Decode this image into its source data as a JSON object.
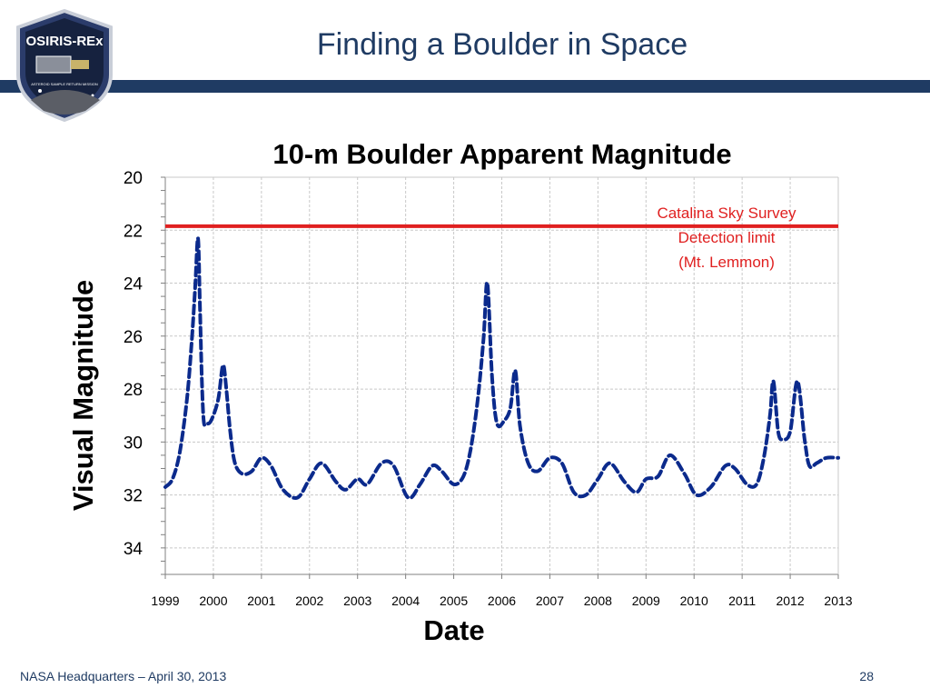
{
  "slide": {
    "title": "Finding a Boulder in Space",
    "footer_left": "NASA Headquarters – April 30, 2013",
    "page_number": "28",
    "logo": {
      "text": "OSIRIS-REx",
      "subtext": "ASTEROID SAMPLE RETURN MISSION"
    }
  },
  "colors": {
    "theme": "#1f3b63",
    "series": "#0b2a8c",
    "limit": "#e02020",
    "annotation": "#e02020"
  },
  "chart_data": {
    "type": "line",
    "title": "10-m Boulder Apparent Magnitude",
    "xlabel": "Date",
    "ylabel": "Visual Magnitude",
    "xlim": [
      1999,
      2013
    ],
    "ylim": [
      20,
      35
    ],
    "y_inverted": true,
    "x_ticks": [
      1999,
      2000,
      2001,
      2002,
      2003,
      2004,
      2005,
      2006,
      2007,
      2008,
      2009,
      2010,
      2011,
      2012,
      2013
    ],
    "y_ticks": [
      20,
      22,
      24,
      26,
      28,
      30,
      32,
      34
    ],
    "grid": true,
    "reference_line": {
      "y": 21.85,
      "annotation": [
        "Catalina Sky Survey",
        "Detection limit",
        "(Mt. Lemmon)"
      ]
    },
    "series": [
      {
        "line_style": "dashed",
        "x": [
          1999.0,
          1999.15,
          1999.3,
          1999.45,
          1999.55,
          1999.62,
          1999.68,
          1999.72,
          1999.76,
          1999.8,
          1999.85,
          1999.95,
          2000.1,
          2000.2,
          2000.27,
          2000.35,
          2000.45,
          2000.6,
          2000.8,
          2001.0,
          2001.2,
          2001.45,
          2001.75,
          2002.0,
          2002.25,
          2002.55,
          2002.75,
          2003.0,
          2003.2,
          2003.5,
          2003.75,
          2004.05,
          2004.3,
          2004.55,
          2004.75,
          2005.0,
          2005.2,
          2005.35,
          2005.5,
          2005.62,
          2005.7,
          2005.8,
          2005.9,
          2006.05,
          2006.18,
          2006.28,
          2006.38,
          2006.55,
          2006.75,
          2007.0,
          2007.25,
          2007.5,
          2007.75,
          2008.0,
          2008.25,
          2008.55,
          2008.8,
          2009.0,
          2009.25,
          2009.5,
          2009.8,
          2010.05,
          2010.35,
          2010.65,
          2010.85,
          2011.1,
          2011.3,
          2011.45,
          2011.58,
          2011.65,
          2011.75,
          2011.85,
          2012.0,
          2012.15,
          2012.3,
          2012.4,
          2012.55,
          2012.75,
          2013.0
        ],
        "y": [
          31.7,
          31.4,
          30.4,
          28.4,
          26.2,
          24.2,
          22.3,
          24.8,
          27.6,
          29.2,
          29.3,
          29.2,
          28.4,
          27.1,
          28.0,
          29.6,
          30.8,
          31.2,
          31.1,
          30.6,
          30.9,
          31.8,
          32.1,
          31.4,
          30.8,
          31.5,
          31.8,
          31.4,
          31.6,
          30.8,
          30.9,
          32.1,
          31.6,
          30.9,
          31.1,
          31.6,
          31.3,
          30.3,
          28.4,
          26.1,
          24.0,
          27.6,
          29.3,
          29.2,
          28.7,
          27.3,
          29.4,
          30.8,
          31.1,
          30.6,
          30.8,
          31.9,
          32.0,
          31.4,
          30.8,
          31.5,
          31.9,
          31.4,
          31.3,
          30.5,
          31.2,
          32.0,
          31.7,
          30.9,
          31.0,
          31.6,
          31.6,
          30.6,
          29.0,
          27.7,
          29.6,
          29.9,
          29.6,
          27.7,
          29.9,
          30.9,
          30.8,
          30.6,
          30.6
        ]
      }
    ]
  }
}
